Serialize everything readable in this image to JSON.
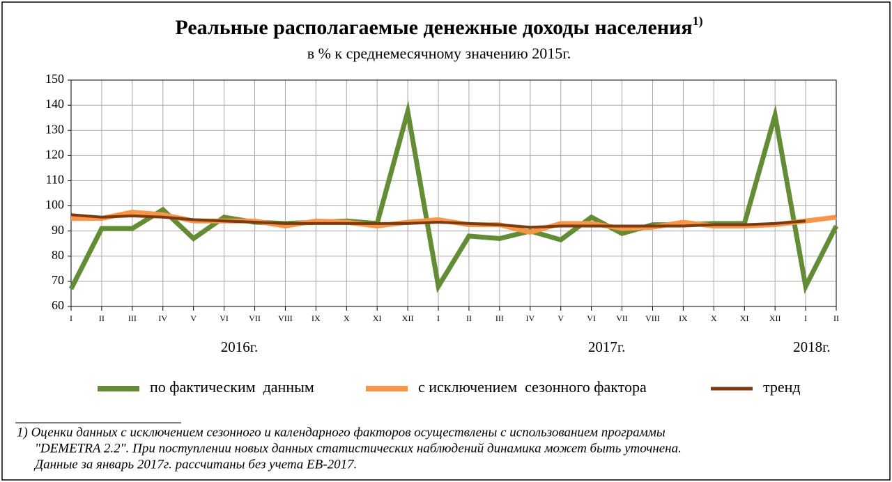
{
  "chart_data": {
    "type": "line",
    "title": "Реальные располагаемые денежные доходы населения",
    "title_note": "1)",
    "subtitle": "в % к среднемесячному значению 2015г.",
    "categories": [
      "I",
      "II",
      "III",
      "IV",
      "V",
      "VI",
      "VII",
      "VIII",
      "IX",
      "X",
      "XI",
      "XII",
      "I",
      "II",
      "III",
      "IV",
      "V",
      "VI",
      "VII",
      "VIII",
      "IX",
      "X",
      "XI",
      "XII",
      "I",
      "II"
    ],
    "year_labels": [
      "2016г.",
      "2017г.",
      "2018г."
    ],
    "series": [
      {
        "name": "по фактическим  данным",
        "color": "#638c35",
        "width": 7,
        "values": [
          67,
          91,
          91,
          98.5,
          87,
          95.5,
          93.5,
          93,
          93.5,
          94,
          93,
          137.5,
          68,
          88,
          87,
          90,
          86.5,
          95.5,
          89,
          92.5,
          92.5,
          93,
          93,
          136,
          68,
          92
        ]
      },
      {
        "name": "с исключением  сезонного фактора",
        "color": "#f79646",
        "width": 7,
        "values": [
          95,
          95,
          97.5,
          96.5,
          94,
          94,
          94,
          92,
          94,
          93.5,
          92,
          93.5,
          94.5,
          92.5,
          92.5,
          89.5,
          93,
          93,
          91,
          91.5,
          93.5,
          92,
          92,
          92.5,
          94,
          95.5
        ]
      },
      {
        "name": "тренд",
        "color": "#7b3a12",
        "width": 4,
        "values": [
          96.5,
          95.5,
          96,
          95.5,
          94.5,
          94,
          93.5,
          93,
          93,
          93,
          93,
          93,
          93.5,
          93,
          92.5,
          91.5,
          92,
          92,
          92,
          92,
          92,
          92.5,
          92.5,
          93,
          94,
          null
        ]
      }
    ],
    "ylim": [
      60,
      150
    ],
    "yticks": [
      60,
      70,
      80,
      90,
      100,
      110,
      120,
      130,
      140,
      150
    ],
    "grid": true,
    "footnote": [
      "1)  Оценки данных с исключением сезонного и календарного факторов осуществлены с использованием программы",
      "\"DEMETRA 2.2\". При поступлении новых данных статистических наблюдений динамика может быть уточнена.",
      "Данные за январь 2017г. рассчитаны без учета ЕВ-2017."
    ]
  }
}
